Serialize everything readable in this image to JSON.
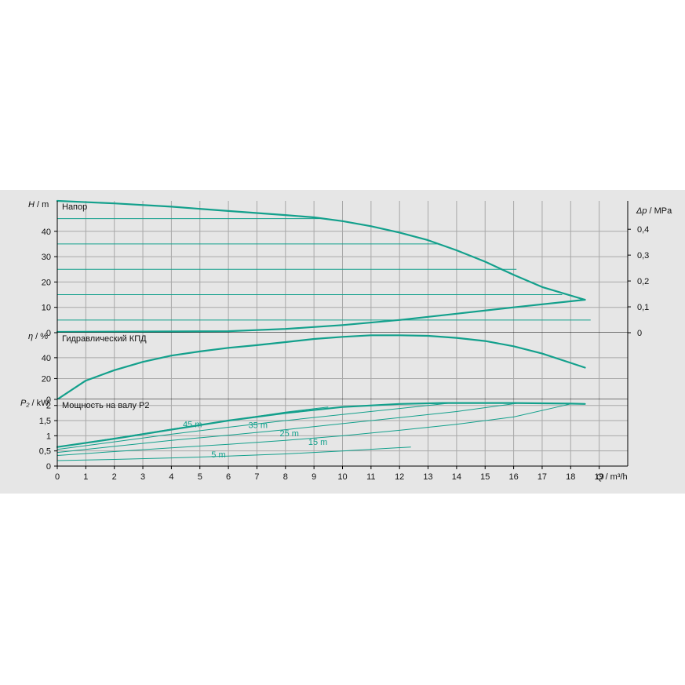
{
  "chart_data": [
    {
      "type": "line",
      "panel": "head",
      "title": "Напор",
      "ylabel_symbol": "H",
      "ylabel_unit": "/ m",
      "y2label_symbol": "Δp",
      "y2label_unit": "/ MPa",
      "xlim": [
        0,
        20
      ],
      "ylim": [
        0,
        52
      ],
      "y_ticks": [
        "0",
        "10",
        "20",
        "30",
        "40"
      ],
      "y_tick_values": [
        0,
        10,
        20,
        30,
        40
      ],
      "y2_ticks": [
        "0",
        "0,1",
        "0,2",
        "0,3",
        "0,4"
      ],
      "y2_tick_values": [
        0,
        10.2,
        20.4,
        30.6,
        40.8
      ],
      "grid": true,
      "series": [
        {
          "x": [
            0,
            2,
            4,
            6,
            8,
            9,
            10,
            11,
            12,
            13,
            14,
            15,
            16,
            17,
            18.5
          ],
          "y": [
            52,
            51,
            49.7,
            48,
            46.4,
            45.5,
            44,
            42,
            39.5,
            36.5,
            32.5,
            28,
            22.8,
            18,
            13
          ]
        },
        {
          "x": [
            0,
            6,
            8,
            10,
            12,
            14,
            16,
            18.5
          ],
          "y": [
            0.3,
            0.6,
            1.5,
            3,
            5,
            7.5,
            10,
            13
          ]
        }
      ],
      "reference_lines": [
        {
          "y": 45,
          "x_end": 9.2
        },
        {
          "y": 35,
          "x_end": 13.4
        },
        {
          "y": 25,
          "x_end": 16.1
        },
        {
          "y": 15,
          "x_end": 17.7
        },
        {
          "y": 5,
          "x_end": 18.7
        }
      ]
    },
    {
      "type": "line",
      "panel": "efficiency",
      "title": "Гидравлический КПД",
      "ylabel_symbol": "η",
      "ylabel_unit": "/ %",
      "xlim": [
        0,
        20
      ],
      "ylim": [
        0,
        64
      ],
      "y_ticks": [
        "0",
        "20",
        "40"
      ],
      "y_tick_values": [
        0,
        20,
        40
      ],
      "grid": true,
      "series": [
        {
          "x": [
            0,
            1,
            2,
            3,
            4,
            5,
            6,
            7,
            8,
            9,
            10,
            11,
            12,
            13,
            14,
            15,
            16,
            17,
            18,
            18.5
          ],
          "y": [
            0,
            18,
            28,
            36,
            42,
            46,
            49.5,
            52,
            55,
            58,
            60,
            61.5,
            61.5,
            61,
            59,
            56,
            51,
            44,
            35,
            30.5
          ]
        }
      ]
    },
    {
      "type": "line",
      "panel": "power",
      "title": "Мощность на валу P2",
      "ylabel_symbol": "P₂",
      "ylabel_unit": "/ kW",
      "xlabel_symbol": "Q",
      "xlabel_unit": "/ m³/h",
      "xlim": [
        0,
        20
      ],
      "ylim": [
        0,
        2.2
      ],
      "x_ticks": [
        "0",
        "1",
        "2",
        "3",
        "4",
        "5",
        "6",
        "7",
        "8",
        "9",
        "10",
        "11",
        "12",
        "13",
        "14",
        "15",
        "16",
        "17",
        "18",
        "19"
      ],
      "x_tick_values": [
        0,
        1,
        2,
        3,
        4,
        5,
        6,
        7,
        8,
        9,
        10,
        11,
        12,
        13,
        14,
        15,
        16,
        17,
        18,
        19
      ],
      "y_ticks": [
        "0",
        "0,5",
        "1",
        "1,5",
        "2"
      ],
      "y_tick_values": [
        0,
        0.5,
        1,
        1.5,
        2
      ],
      "grid": true,
      "series": [
        {
          "x": [
            0,
            2,
            4,
            6,
            8,
            10,
            12,
            13.5,
            16,
            18,
            18.5
          ],
          "y": [
            0.63,
            0.9,
            1.2,
            1.5,
            1.75,
            1.95,
            2.05,
            2.08,
            2.08,
            2.06,
            2.05
          ]
        }
      ],
      "iso_curves": [
        {
          "label": "45 m",
          "label_x": 4.4,
          "label_y": 1.28,
          "x": [
            0,
            2,
            4,
            6,
            8,
            9.5
          ],
          "y": [
            0.63,
            0.92,
            1.22,
            1.5,
            1.78,
            1.95
          ]
        },
        {
          "label": "35 m",
          "label_x": 6.7,
          "label_y": 1.26,
          "x": [
            0,
            2,
            4,
            6,
            8,
            10,
            12,
            13.8
          ],
          "y": [
            0.55,
            0.8,
            1.05,
            1.28,
            1.5,
            1.7,
            1.9,
            2.08
          ]
        },
        {
          "label": "25 m",
          "label_x": 7.8,
          "label_y": 0.98,
          "x": [
            0,
            2,
            4,
            6,
            8,
            10,
            12,
            14,
            16.2
          ],
          "y": [
            0.45,
            0.65,
            0.85,
            1.02,
            1.2,
            1.4,
            1.6,
            1.8,
            2.08
          ]
        },
        {
          "label": "15 m",
          "label_x": 8.8,
          "label_y": 0.7,
          "x": [
            0,
            2,
            4,
            6,
            8,
            10,
            12,
            14,
            16,
            18
          ],
          "y": [
            0.35,
            0.48,
            0.6,
            0.72,
            0.85,
            1.0,
            1.18,
            1.38,
            1.62,
            2.05
          ]
        },
        {
          "label": "5 m",
          "label_x": 5.4,
          "label_y": 0.28,
          "x": [
            0,
            2,
            4,
            6,
            8,
            10,
            12.4
          ],
          "y": [
            0.18,
            0.22,
            0.27,
            0.33,
            0.4,
            0.5,
            0.63
          ]
        }
      ]
    }
  ],
  "colors": {
    "curve": "#13a08c",
    "grid": "#a8a8a8",
    "panel_bg": "#e6e6e6",
    "plot_bg": "#e6e6e6",
    "axis": "#000000"
  }
}
